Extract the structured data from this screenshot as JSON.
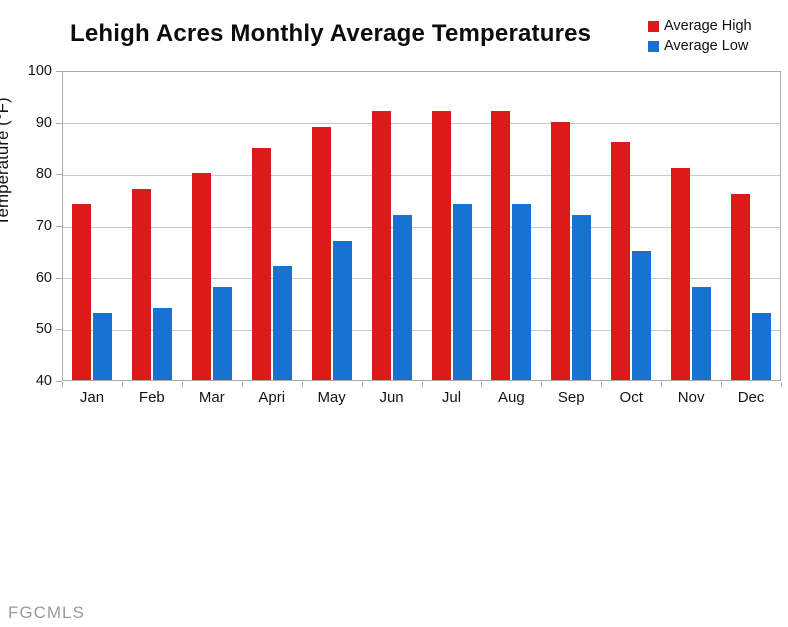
{
  "title": "Lehigh Acres Monthly Average Temperatures",
  "watermark": "FGCMLS",
  "legend": [
    {
      "label": "Average High",
      "color": "#dc1a1a"
    },
    {
      "label": "Average Low",
      "color": "#1673d2"
    }
  ],
  "colors": {
    "high": "#dc1a1a",
    "low": "#1673d2",
    "gridline": "#c9c9c9",
    "axis_border": "#aaaaaa",
    "watermark_text": "#9b9b9b"
  },
  "chart_data": {
    "type": "bar",
    "title": "Lehigh Acres Monthly Average Temperatures",
    "categories": [
      "Jan",
      "Feb",
      "Mar",
      "Apri",
      "May",
      "Jun",
      "Jul",
      "Aug",
      "Sep",
      "Oct",
      "Nov",
      "Dec"
    ],
    "series": [
      {
        "name": "Average High",
        "color": "#dc1a1a",
        "values": [
          74,
          77,
          80,
          85,
          89,
          92,
          92,
          92,
          90,
          86,
          81,
          76
        ]
      },
      {
        "name": "Average Low",
        "color": "#1673d2",
        "values": [
          53,
          54,
          58,
          62,
          67,
          72,
          74,
          74,
          72,
          65,
          58,
          53
        ]
      }
    ],
    "xlabel": "",
    "ylabel": "Temperature (°F)",
    "ylim": [
      40,
      100
    ],
    "ytick_step": 10,
    "yticks": [
      40,
      50,
      60,
      70,
      80,
      90,
      100
    ],
    "grid": true,
    "legend_position": "top-right"
  }
}
